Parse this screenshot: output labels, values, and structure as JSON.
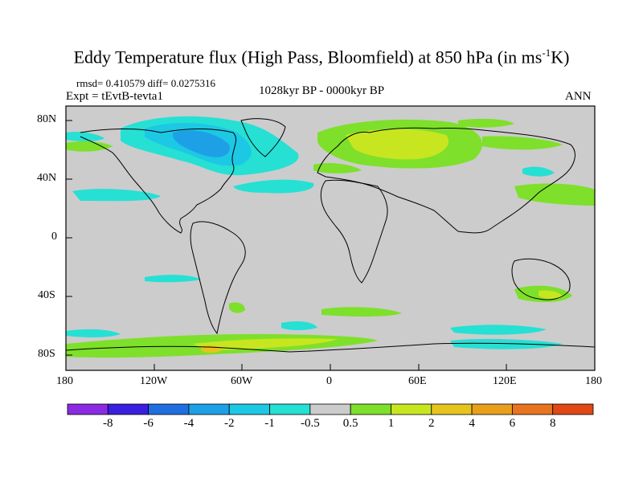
{
  "title": {
    "main": "Eddy Temperature flux (High Pass, Bloomfield) at 850 hPa (in ms",
    "sup": "-1",
    "tail": "K)"
  },
  "stats": "rmsd= 0.410579 diff= 0.0275316",
  "expt": "Expt = tEvtB-tevta1",
  "period": "1028kyr BP - 0000kyr BP",
  "season": "ANN",
  "y_axis_labels": [
    "80N",
    "40N",
    "0",
    "40S",
    "80S"
  ],
  "x_axis_labels": [
    "180",
    "120W",
    "60W",
    "0",
    "60E",
    "120E",
    "180"
  ],
  "colorbar": {
    "labels": [
      "-8",
      "-6",
      "-4",
      "-2",
      "-1",
      "-0.5",
      "0.5",
      "1",
      "2",
      "4",
      "6",
      "8"
    ],
    "colors": [
      "#8a2be2",
      "#3a1fe0",
      "#1f6fe0",
      "#1ea0e6",
      "#1cc8e4",
      "#26e0d4",
      "#cccccc",
      "#7ee02a",
      "#c8e620",
      "#e6c41e",
      "#e8a01c",
      "#e87420",
      "#e04818"
    ]
  },
  "map": {
    "projection": "cylindrical equidistant",
    "lon_range": [
      -180,
      180
    ],
    "lat_range": [
      -90,
      90
    ],
    "background_color": "#cccccc",
    "coastline_color": "#000000"
  }
}
